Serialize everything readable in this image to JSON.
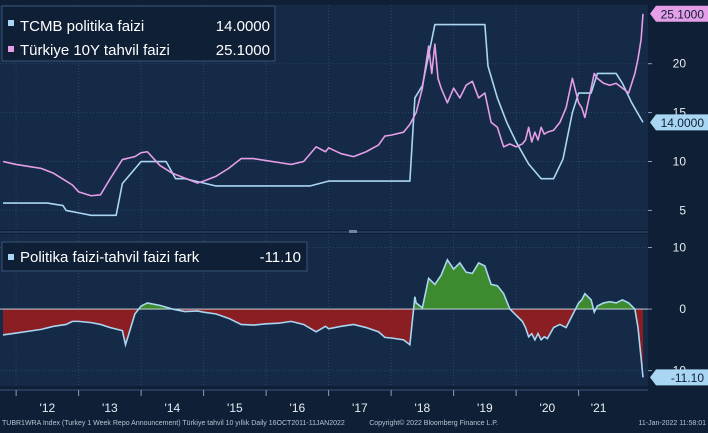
{
  "colors": {
    "background": "#0f1f36",
    "plot_bg": "#142a46",
    "grid": "#2c4566",
    "policy": "#a9d6f2",
    "bond": "#e59ee8",
    "spread_pos": "#3e8a2e",
    "spread_neg": "#8b1e22",
    "text": "#ffffff",
    "tick_text": "#e8edf3",
    "footer_text": "#b9c4d2"
  },
  "chart_data": [
    {
      "type": "line",
      "ylim": [
        3,
        26
      ],
      "yticks": [
        5,
        10,
        15,
        20
      ],
      "legend": "top-left",
      "grid": true,
      "series": [
        {
          "name": "TCMB politika faizi",
          "legend_value": "14.0000",
          "last_value_label": "14.0000",
          "x": [
            2011.79,
            2012.5,
            2012.75,
            2012.8,
            2013.0,
            2013.2,
            2013.3,
            2013.6,
            2013.7,
            2014.0,
            2014.1,
            2014.4,
            2014.55,
            2014.7,
            2015.2,
            2015.6,
            2016.0,
            2016.3,
            2016.7,
            2017.0,
            2017.5,
            2017.7,
            2018.0,
            2018.3,
            2018.38,
            2018.5,
            2018.7,
            2019.0,
            2019.3,
            2019.5,
            2019.55,
            2019.7,
            2019.85,
            2020.0,
            2020.2,
            2020.4,
            2020.6,
            2020.75,
            2020.9,
            2021.0,
            2021.2,
            2021.3,
            2021.4,
            2021.6,
            2021.7,
            2021.85,
            2022.03
          ],
          "values": [
            5.75,
            5.75,
            5.5,
            5.0,
            4.75,
            4.5,
            4.5,
            4.5,
            7.75,
            10.0,
            10.0,
            10.0,
            8.25,
            8.25,
            7.5,
            7.5,
            7.5,
            7.5,
            7.5,
            8.0,
            8.0,
            8.0,
            8.0,
            8.0,
            16.5,
            17.75,
            24.0,
            24.0,
            24.0,
            24.0,
            19.75,
            16.5,
            14.0,
            12.0,
            9.75,
            8.25,
            8.25,
            10.25,
            15.0,
            17.0,
            17.0,
            19.0,
            19.0,
            19.0,
            18.0,
            16.0,
            14.0
          ]
        },
        {
          "name": "Türkiye 10Y tahvil faizi",
          "legend_value": "25.1000",
          "last_value_label": "25.1000",
          "x": [
            2011.79,
            2012.0,
            2012.2,
            2012.4,
            2012.6,
            2012.8,
            2012.9,
            2013.0,
            2013.2,
            2013.35,
            2013.5,
            2013.7,
            2013.9,
            2014.0,
            2014.1,
            2014.3,
            2014.5,
            2014.7,
            2014.9,
            2015.0,
            2015.2,
            2015.4,
            2015.6,
            2015.8,
            2016.0,
            2016.2,
            2016.4,
            2016.6,
            2016.8,
            2016.95,
            2017.0,
            2017.2,
            2017.4,
            2017.6,
            2017.8,
            2017.9,
            2018.0,
            2018.2,
            2018.3,
            2018.4,
            2018.5,
            2018.6,
            2018.65,
            2018.7,
            2018.75,
            2018.8,
            2018.9,
            2019.0,
            2019.1,
            2019.2,
            2019.3,
            2019.4,
            2019.5,
            2019.55,
            2019.6,
            2019.7,
            2019.8,
            2019.9,
            2020.0,
            2020.1,
            2020.15,
            2020.2,
            2020.25,
            2020.3,
            2020.35,
            2020.4,
            2020.45,
            2020.5,
            2020.6,
            2020.7,
            2020.8,
            2020.9,
            2021.0,
            2021.05,
            2021.1,
            2021.2,
            2021.25,
            2021.3,
            2021.4,
            2021.5,
            2021.6,
            2021.7,
            2021.8,
            2021.9,
            2021.95,
            2022.0,
            2022.03
          ],
          "values": [
            10.0,
            9.7,
            9.5,
            9.3,
            8.8,
            8.0,
            7.6,
            6.9,
            6.5,
            6.6,
            8.2,
            10.2,
            10.5,
            10.9,
            11.0,
            9.6,
            8.8,
            8.3,
            7.8,
            8.0,
            8.5,
            9.3,
            10.3,
            10.3,
            10.1,
            9.9,
            9.7,
            10.0,
            11.5,
            11.0,
            11.4,
            10.8,
            10.5,
            11.0,
            11.7,
            12.6,
            12.7,
            13.0,
            13.8,
            15.0,
            17.5,
            21.8,
            19.0,
            22.0,
            18.5,
            17.5,
            16.0,
            17.5,
            16.5,
            17.8,
            18.2,
            16.5,
            17.0,
            15.5,
            14.0,
            13.5,
            11.5,
            11.8,
            11.5,
            11.8,
            12.2,
            13.5,
            12.0,
            13.0,
            12.2,
            13.5,
            12.8,
            13.0,
            13.2,
            14.0,
            15.5,
            18.5,
            16.0,
            15.5,
            14.5,
            17.5,
            19.0,
            18.5,
            18.0,
            17.8,
            18.0,
            17.5,
            17.0,
            19.0,
            20.5,
            22.5,
            25.1
          ]
        }
      ]
    },
    {
      "type": "area",
      "ylim": [
        -12.5,
        12.2
      ],
      "yticks": [
        10,
        0,
        -10
      ],
      "legend": "top-left",
      "grid": true,
      "series": [
        {
          "name": "Politika faizi-tahvil faizi fark",
          "legend_value": "-11.10",
          "last_value_label": "-11.10",
          "x": [
            2011.79,
            2012.0,
            2012.2,
            2012.4,
            2012.6,
            2012.8,
            2012.9,
            2013.0,
            2013.2,
            2013.35,
            2013.5,
            2013.7,
            2013.75,
            2013.9,
            2014.0,
            2014.1,
            2014.3,
            2014.5,
            2014.7,
            2014.9,
            2015.0,
            2015.2,
            2015.4,
            2015.6,
            2015.8,
            2016.0,
            2016.2,
            2016.4,
            2016.6,
            2016.8,
            2016.95,
            2017.0,
            2017.2,
            2017.4,
            2017.6,
            2017.8,
            2017.9,
            2018.0,
            2018.2,
            2018.3,
            2018.38,
            2018.4,
            2018.5,
            2018.6,
            2018.7,
            2018.8,
            2018.9,
            2019.0,
            2019.1,
            2019.2,
            2019.3,
            2019.4,
            2019.5,
            2019.55,
            2019.6,
            2019.7,
            2019.8,
            2019.9,
            2020.0,
            2020.1,
            2020.15,
            2020.2,
            2020.25,
            2020.3,
            2020.35,
            2020.4,
            2020.45,
            2020.5,
            2020.6,
            2020.7,
            2020.8,
            2020.9,
            2021.0,
            2021.05,
            2021.1,
            2021.2,
            2021.25,
            2021.3,
            2021.4,
            2021.5,
            2021.6,
            2021.7,
            2021.8,
            2021.9,
            2021.95,
            2022.0,
            2022.03
          ],
          "values": [
            -4.2,
            -3.9,
            -3.6,
            -3.3,
            -2.8,
            -2.5,
            -2.0,
            -2.0,
            -2.2,
            -2.5,
            -3.0,
            -3.5,
            -5.8,
            -0.8,
            0.5,
            1.0,
            0.6,
            0.0,
            -0.4,
            -0.3,
            -0.5,
            -0.8,
            -1.5,
            -2.5,
            -2.6,
            -2.4,
            -2.3,
            -2.0,
            -2.5,
            -3.7,
            -2.8,
            -3.2,
            -2.8,
            -2.5,
            -3.0,
            -3.7,
            -4.6,
            -4.7,
            -5.0,
            -5.8,
            2.0,
            1.0,
            0.2,
            5.0,
            4.0,
            5.5,
            8.0,
            6.5,
            7.5,
            6.0,
            5.8,
            7.5,
            7.0,
            5.5,
            4.0,
            3.8,
            2.5,
            0.0,
            -1.0,
            -2.0,
            -3.0,
            -4.5,
            -4.0,
            -5.0,
            -4.0,
            -5.0,
            -4.5,
            -4.8,
            -3.0,
            -2.5,
            -3.0,
            -1.0,
            1.0,
            1.5,
            2.5,
            1.5,
            -0.5,
            0.5,
            1.0,
            1.2,
            1.0,
            1.5,
            1.0,
            0.0,
            -3.0,
            -8.0,
            -11.1
          ]
        }
      ]
    }
  ],
  "x_axis": {
    "range": [
      2011.79,
      2022.03
    ],
    "ticks": [
      2012,
      2013,
      2014,
      2015,
      2016,
      2017,
      2018,
      2019,
      2020,
      2021
    ],
    "tick_labels": [
      "'12",
      "'13",
      "'14",
      "'15",
      "'16",
      "'17",
      "'18",
      "'19",
      "'20",
      "'21"
    ]
  },
  "footer": {
    "left": "TUBR1WRA Index (Turkey 1 Week Repo Announcement) Türkiye tahvil 10 yıllık  Daily 16OCT2011-11JAN2022",
    "center": "Copyright© 2022 Bloomberg Finance L.P.",
    "right": "11-Jan-2022 11:58:01"
  }
}
